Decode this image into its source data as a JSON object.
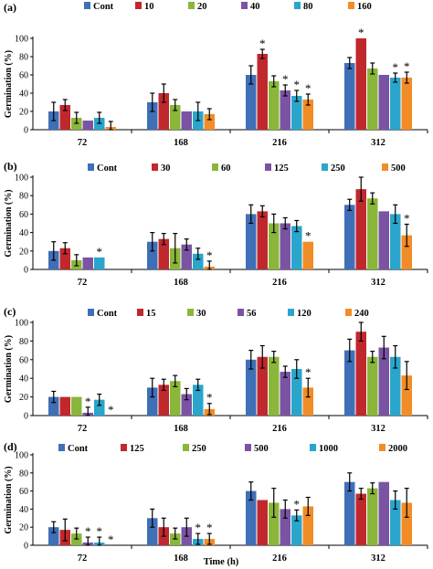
{
  "colors": [
    "#3f6fb7",
    "#c0282d",
    "#8ab63a",
    "#7a54a3",
    "#2aa5cb",
    "#f28c26"
  ],
  "chart_data": [
    {
      "type": "bar",
      "panel_label": "(a)",
      "ylabel": "Germination (%)",
      "xlabel": "",
      "ylim": [
        0,
        100
      ],
      "yticks": [
        0,
        20,
        40,
        60,
        80,
        100
      ],
      "categories": [
        "72",
        "168",
        "216",
        "312"
      ],
      "legend_position": "top",
      "series": [
        {
          "name": "Cont",
          "values": [
            20,
            30,
            60,
            73
          ],
          "errors": [
            10,
            10,
            10,
            6
          ],
          "sig": [
            false,
            false,
            false,
            false
          ]
        },
        {
          "name": "10",
          "values": [
            27,
            40,
            83,
            100
          ],
          "errors": [
            6,
            10,
            5,
            0
          ],
          "sig": [
            false,
            false,
            true,
            true
          ]
        },
        {
          "name": "20",
          "values": [
            13,
            27,
            53,
            67
          ],
          "errors": [
            6,
            6,
            6,
            6
          ],
          "sig": [
            false,
            false,
            false,
            false
          ]
        },
        {
          "name": "40",
          "values": [
            10,
            20,
            43,
            60
          ],
          "errors": [
            0,
            0,
            6,
            0
          ],
          "sig": [
            false,
            false,
            true,
            false
          ]
        },
        {
          "name": "80",
          "values": [
            13,
            20,
            37,
            57
          ],
          "errors": [
            6,
            10,
            6,
            5
          ],
          "sig": [
            false,
            false,
            true,
            true
          ]
        },
        {
          "name": "160",
          "values": [
            3,
            17,
            33,
            57
          ],
          "errors": [
            6,
            6,
            6,
            6
          ],
          "sig": [
            false,
            false,
            true,
            true
          ]
        }
      ]
    },
    {
      "type": "bar",
      "panel_label": "(b)",
      "ylabel": "Germination (%)",
      "xlabel": "",
      "ylim": [
        0,
        100
      ],
      "yticks": [
        0,
        20,
        40,
        60,
        80,
        100
      ],
      "categories": [
        "72",
        "168",
        "216",
        "312"
      ],
      "legend_position": "top",
      "series": [
        {
          "name": "Cont",
          "values": [
            20,
            30,
            60,
            70
          ],
          "errors": [
            10,
            10,
            10,
            6
          ],
          "sig": [
            false,
            false,
            false,
            false
          ]
        },
        {
          "name": "30",
          "values": [
            23,
            33,
            63,
            87
          ],
          "errors": [
            6,
            6,
            6,
            13
          ],
          "sig": [
            false,
            false,
            false,
            false
          ]
        },
        {
          "name": "60",
          "values": [
            10,
            23,
            50,
            77
          ],
          "errors": [
            6,
            16,
            10,
            6
          ],
          "sig": [
            false,
            false,
            false,
            false
          ]
        },
        {
          "name": "125",
          "values": [
            13,
            27,
            50,
            63
          ],
          "errors": [
            0,
            6,
            6,
            0
          ],
          "sig": [
            false,
            false,
            false,
            false
          ]
        },
        {
          "name": "250",
          "values": [
            13,
            17,
            47,
            60
          ],
          "errors": [
            0,
            6,
            6,
            10
          ],
          "sig": [
            true,
            false,
            false,
            false
          ]
        },
        {
          "name": "500",
          "values": [
            0,
            3,
            30,
            37
          ],
          "errors": [
            0,
            6,
            0,
            12
          ],
          "sig": [
            false,
            true,
            true,
            true
          ]
        }
      ]
    },
    {
      "type": "bar",
      "panel_label": "(c)",
      "ylabel": "Germination (%)",
      "xlabel": "",
      "ylim": [
        0,
        100
      ],
      "yticks": [
        0,
        20,
        40,
        60,
        80,
        100
      ],
      "categories": [
        "72",
        "168",
        "216",
        "312"
      ],
      "legend_position": "top",
      "series": [
        {
          "name": "Cont",
          "values": [
            20,
            30,
            60,
            70
          ],
          "errors": [
            6,
            10,
            10,
            12
          ],
          "sig": [
            false,
            false,
            false,
            false
          ]
        },
        {
          "name": "15",
          "values": [
            20,
            33,
            63,
            90
          ],
          "errors": [
            0,
            6,
            12,
            10
          ],
          "sig": [
            false,
            false,
            false,
            false
          ]
        },
        {
          "name": "30",
          "values": [
            20,
            37,
            63,
            63
          ],
          "errors": [
            0,
            6,
            6,
            6
          ],
          "sig": [
            false,
            false,
            false,
            false
          ]
        },
        {
          "name": "56",
          "values": [
            3,
            23,
            47,
            73
          ],
          "errors": [
            6,
            6,
            6,
            12
          ],
          "sig": [
            true,
            false,
            false,
            false
          ]
        },
        {
          "name": "120",
          "values": [
            17,
            33,
            50,
            63
          ],
          "errors": [
            6,
            6,
            10,
            12
          ],
          "sig": [
            false,
            false,
            false,
            false
          ]
        },
        {
          "name": "240",
          "values": [
            0,
            7,
            30,
            43
          ],
          "errors": [
            0,
            6,
            10,
            15
          ],
          "sig": [
            true,
            true,
            true,
            false
          ]
        }
      ]
    },
    {
      "type": "bar",
      "panel_label": "(d)",
      "ylabel": "Germination (%)",
      "xlabel": "Time (h)",
      "ylim": [
        0,
        100
      ],
      "yticks": [
        0,
        20,
        40,
        60,
        80,
        100
      ],
      "categories": [
        "72",
        "168",
        "216",
        "312"
      ],
      "legend_position": "top",
      "series": [
        {
          "name": "Cont",
          "values": [
            20,
            30,
            60,
            70
          ],
          "errors": [
            6,
            10,
            10,
            10
          ],
          "sig": [
            false,
            false,
            false,
            false
          ]
        },
        {
          "name": "125",
          "values": [
            17,
            20,
            50,
            57
          ],
          "errors": [
            12,
            10,
            0,
            6
          ],
          "sig": [
            false,
            false,
            false,
            false
          ]
        },
        {
          "name": "250",
          "values": [
            13,
            13,
            47,
            63
          ],
          "errors": [
            6,
            6,
            16,
            6
          ],
          "sig": [
            false,
            false,
            false,
            false
          ]
        },
        {
          "name": "500",
          "values": [
            3,
            20,
            40,
            70
          ],
          "errors": [
            6,
            10,
            10,
            0
          ],
          "sig": [
            true,
            false,
            false,
            false
          ]
        },
        {
          "name": "1000",
          "values": [
            3,
            7,
            33,
            50
          ],
          "errors": [
            6,
            6,
            6,
            10
          ],
          "sig": [
            true,
            true,
            true,
            false
          ]
        },
        {
          "name": "2000",
          "values": [
            0,
            7,
            43,
            47
          ],
          "errors": [
            0,
            6,
            10,
            16
          ],
          "sig": [
            true,
            true,
            false,
            false
          ]
        }
      ]
    }
  ]
}
